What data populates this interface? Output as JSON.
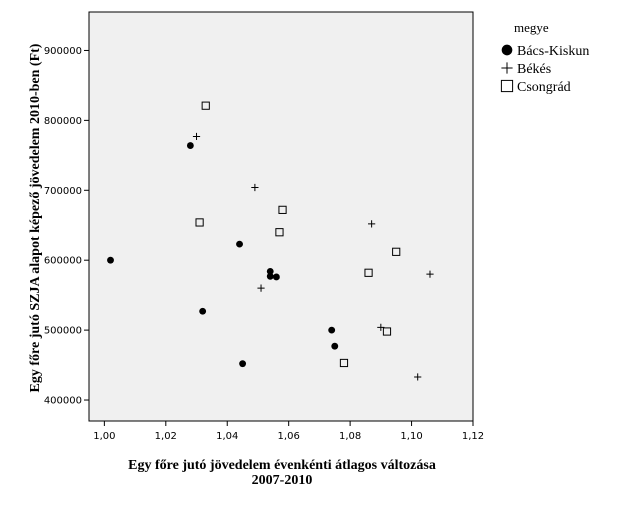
{
  "chart_data": {
    "type": "scatter",
    "title": "",
    "xlabel_line1": "Egy főre jutó jövedelem évenkénti átlagos változása",
    "xlabel_line2": "2007-2010",
    "ylabel": "Egy főre jutó SZJA alapot képező jövedelem 2010-ben (Ft)",
    "xlim": [
      0.995,
      1.12
    ],
    "ylim": [
      370000,
      955000
    ],
    "xticks": [
      1.0,
      1.02,
      1.04,
      1.06,
      1.08,
      1.1,
      1.12
    ],
    "xtick_labels": [
      "1,00",
      "1,02",
      "1,04",
      "1,06",
      "1,08",
      "1,10",
      "1,12"
    ],
    "yticks": [
      400000,
      500000,
      600000,
      700000,
      800000,
      900000
    ],
    "ytick_labels": [
      "400000",
      "500000",
      "600000",
      "700000",
      "800000",
      "900000"
    ],
    "legend": {
      "title": "megye",
      "position": "right"
    },
    "colors": {
      "plot_bg": "#f0f0f0",
      "marker": "#000000",
      "axis": "#000000"
    },
    "series": [
      {
        "name": "Bács-Kiskun",
        "marker": "filled-circle",
        "points": [
          {
            "x": 1.002,
            "y": 600000
          },
          {
            "x": 1.028,
            "y": 764000
          },
          {
            "x": 1.032,
            "y": 527000
          },
          {
            "x": 1.044,
            "y": 623000
          },
          {
            "x": 1.045,
            "y": 452000
          },
          {
            "x": 1.054,
            "y": 584000
          },
          {
            "x": 1.054,
            "y": 577000
          },
          {
            "x": 1.056,
            "y": 576000
          },
          {
            "x": 1.074,
            "y": 500000
          },
          {
            "x": 1.075,
            "y": 477000
          }
        ]
      },
      {
        "name": "Békés",
        "marker": "plus",
        "points": [
          {
            "x": 1.03,
            "y": 777000
          },
          {
            "x": 1.049,
            "y": 704000
          },
          {
            "x": 1.051,
            "y": 560000
          },
          {
            "x": 1.087,
            "y": 652000
          },
          {
            "x": 1.09,
            "y": 504000
          },
          {
            "x": 1.102,
            "y": 433000
          },
          {
            "x": 1.106,
            "y": 580000
          }
        ]
      },
      {
        "name": "Csongrád",
        "marker": "open-square",
        "points": [
          {
            "x": 1.033,
            "y": 821000
          },
          {
            "x": 1.031,
            "y": 654000
          },
          {
            "x": 1.058,
            "y": 672000
          },
          {
            "x": 1.057,
            "y": 640000
          },
          {
            "x": 1.078,
            "y": 453000
          },
          {
            "x": 1.086,
            "y": 582000
          },
          {
            "x": 1.092,
            "y": 498000
          },
          {
            "x": 1.095,
            "y": 612000
          }
        ]
      }
    ]
  }
}
